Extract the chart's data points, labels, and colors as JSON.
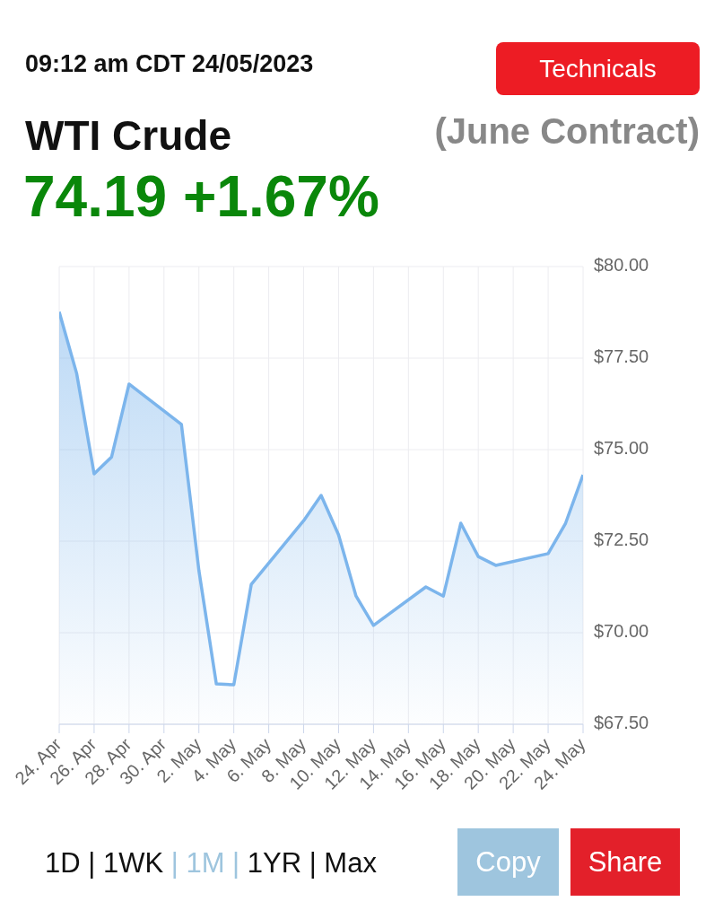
{
  "chart_data": {
    "type": "area",
    "title": "WTI Crude",
    "subtitle": "(June Contract)",
    "annotations": [
      "09:12 am CDT 24/05/2023",
      "74.19 +1.67%",
      "Technicals",
      "1D | 1WK | 1M | 1YR | Max",
      "Copy",
      "Share"
    ],
    "x": [
      "2023-04-24",
      "2023-04-25",
      "2023-04-26",
      "2023-04-27",
      "2023-04-28",
      "2023-05-01",
      "2023-05-02",
      "2023-05-03",
      "2023-05-04",
      "2023-05-05",
      "2023-05-08",
      "2023-05-09",
      "2023-05-10",
      "2023-05-11",
      "2023-05-12",
      "2023-05-15",
      "2023-05-16",
      "2023-05-17",
      "2023-05-18",
      "2023-05-19",
      "2023-05-22",
      "2023-05-23",
      "2023-05-24"
    ],
    "values": [
      78.76,
      77.08,
      74.34,
      74.8,
      76.79,
      75.69,
      71.7,
      68.6,
      68.58,
      71.32,
      73.06,
      73.75,
      72.67,
      71.0,
      70.2,
      71.25,
      71.0,
      72.99,
      72.08,
      71.84,
      72.16,
      72.99,
      74.31
    ],
    "color": "#7cb5ec",
    "xlim": [
      "2023-04-24",
      "2023-05-24"
    ],
    "xticks": [
      {
        "value": "2023-04-24",
        "label": "24. Apr"
      },
      {
        "value": "2023-04-26",
        "label": "26. Apr"
      },
      {
        "value": "2023-04-28",
        "label": "28. Apr"
      },
      {
        "value": "2023-04-30",
        "label": "30. Apr"
      },
      {
        "value": "2023-05-02",
        "label": "2. May"
      },
      {
        "value": "2023-05-04",
        "label": "4. May"
      },
      {
        "value": "2023-05-06",
        "label": "6. May"
      },
      {
        "value": "2023-05-08",
        "label": "8. May"
      },
      {
        "value": "2023-05-10",
        "label": "10. May"
      },
      {
        "value": "2023-05-12",
        "label": "12. May"
      },
      {
        "value": "2023-05-14",
        "label": "14. May"
      },
      {
        "value": "2023-05-16",
        "label": "16. May"
      },
      {
        "value": "2023-05-18",
        "label": "18. May"
      },
      {
        "value": "2023-05-20",
        "label": "20. May"
      },
      {
        "value": "2023-05-22",
        "label": "22. May"
      },
      {
        "value": "2023-05-24",
        "label": "24. May"
      }
    ],
    "ylim": [
      67.5,
      80
    ],
    "yticks": [
      {
        "value": 67.5,
        "label": "$67.50"
      },
      {
        "value": 70,
        "label": "$70.00"
      },
      {
        "value": 72.5,
        "label": "$72.50"
      },
      {
        "value": 75,
        "label": "$75.00"
      },
      {
        "value": 77.5,
        "label": "$77.50"
      },
      {
        "value": 80,
        "label": "$80.00"
      }
    ],
    "grid": true,
    "legend": false
  }
}
